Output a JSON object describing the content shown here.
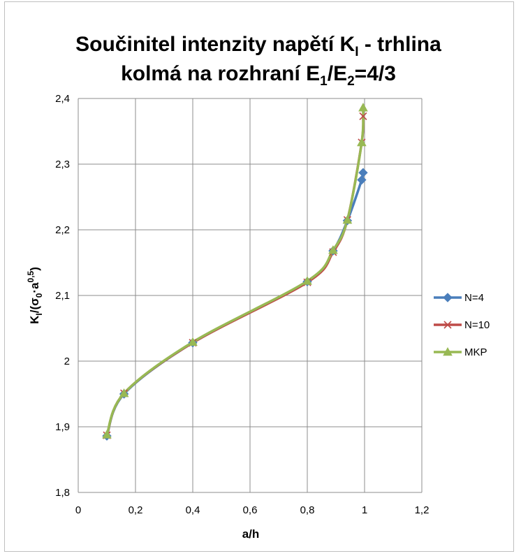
{
  "chart_data": {
    "type": "line",
    "title_line1": {
      "main": "Součinitel intenzity napětí K",
      "sub": "I",
      "tail": " - trhlina"
    },
    "title_line2": {
      "a": "kolmá na rozhraní E",
      "sub1": "1",
      "b": "/E",
      "sub2": "2",
      "c": "=4/3"
    },
    "xlabel": "a/h",
    "ylabel": {
      "k": "K",
      "sub_i": "I",
      "mid": "/(σ",
      "sub_0": "0",
      "a": "·a",
      "sup": "0,5",
      "end": ")"
    },
    "xlim": [
      0,
      1.2
    ],
    "ylim": [
      1.8,
      2.4
    ],
    "x_ticks": [
      {
        "value": 0,
        "label": "0"
      },
      {
        "value": 0.2,
        "label": "0,2"
      },
      {
        "value": 0.4,
        "label": "0,4"
      },
      {
        "value": 0.6,
        "label": "0,6"
      },
      {
        "value": 0.8,
        "label": "0,8"
      },
      {
        "value": 1,
        "label": "1"
      },
      {
        "value": 1.2,
        "label": "1,2"
      }
    ],
    "y_ticks": [
      {
        "value": 1.8,
        "label": "1,8"
      },
      {
        "value": 1.9,
        "label": "1,9"
      },
      {
        "value": 2.0,
        "label": "2"
      },
      {
        "value": 2.1,
        "label": "2,1"
      },
      {
        "value": 2.2,
        "label": "2,2"
      },
      {
        "value": 2.3,
        "label": "2,3"
      },
      {
        "value": 2.4,
        "label": "2,4"
      }
    ],
    "grid": "major gridlines on both axes",
    "legend_position": "right",
    "series": [
      {
        "name": "N=4",
        "color": "#4a7ebb",
        "marker": "diamond",
        "x": [
          0.1,
          0.16,
          0.4,
          0.8,
          0.89,
          0.94,
          0.99,
          0.995
        ],
        "y": [
          1.886,
          1.95,
          2.028,
          2.121,
          2.168,
          2.214,
          2.276,
          2.287
        ]
      },
      {
        "name": "N=10",
        "color": "#be4b48",
        "marker": "x",
        "x": [
          0.1,
          0.16,
          0.4,
          0.8,
          0.89,
          0.94,
          0.99,
          0.995
        ],
        "y": [
          1.887,
          1.951,
          2.028,
          2.12,
          2.166,
          2.215,
          2.333,
          2.373
        ]
      },
      {
        "name": "MKP",
        "color": "#98b954",
        "marker": "triangle",
        "x": [
          0.1,
          0.16,
          0.4,
          0.8,
          0.89,
          0.94,
          0.99,
          0.995
        ],
        "y": [
          1.888,
          1.951,
          2.029,
          2.122,
          2.169,
          2.215,
          2.333,
          2.386
        ]
      }
    ]
  }
}
